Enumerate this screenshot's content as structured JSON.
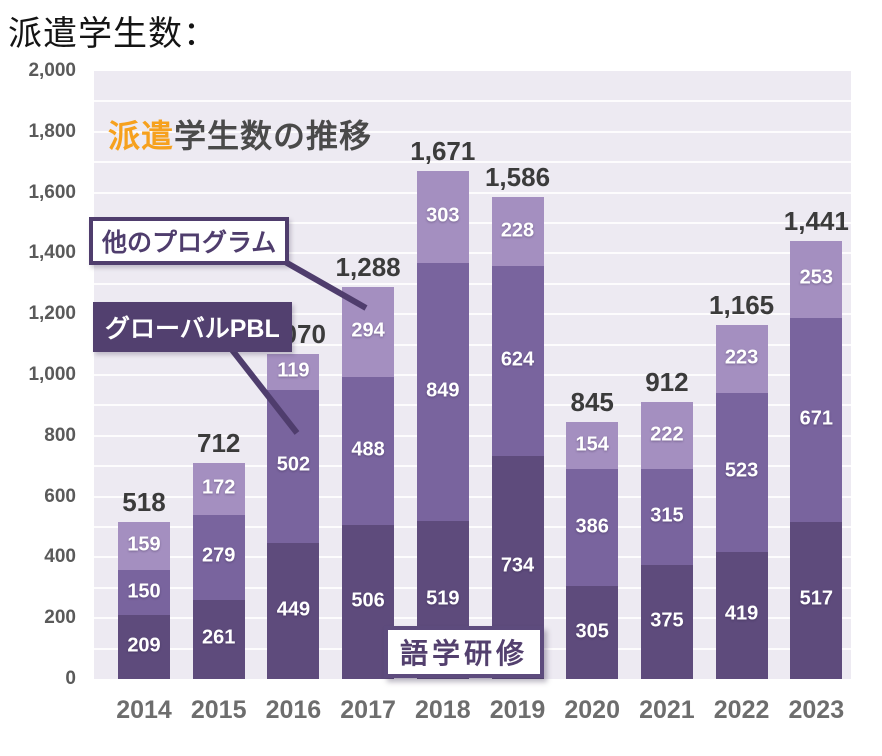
{
  "page": {
    "title": "派遣学生数："
  },
  "chart": {
    "title": {
      "highlight": "派遣",
      "rest": "学生数の推移"
    },
    "annotations": {
      "other_programs": "他のプログラム",
      "global_pbl": "グローバルPBL",
      "language_training": "語学研修"
    },
    "colors": {
      "plot_background": "#edeaf2",
      "gridline": "#ffffff",
      "annotation_purple": "#4f3d6d",
      "title_highlight_orange": "#f6a11e",
      "title_gray": "#4a4a4a",
      "total_label_gray": "#3b3b3b",
      "axis_gray": "#5a5a5a"
    }
  },
  "chart_data": {
    "type": "bar",
    "stacked": true,
    "title": "派遣学生数の推移",
    "categories": [
      "2014",
      "2015",
      "2016",
      "2017",
      "2018",
      "2019",
      "2020",
      "2021",
      "2022",
      "2023"
    ],
    "series": [
      {
        "name": "語学研修",
        "key": "language-training",
        "color": "#5e4b7c",
        "values": [
          209,
          261,
          449,
          506,
          519,
          734,
          305,
          375,
          419,
          517
        ]
      },
      {
        "name": "グローバルPBL",
        "key": "global-pbl",
        "color": "#79649e",
        "values": [
          150,
          279,
          502,
          488,
          849,
          624,
          386,
          315,
          523,
          671
        ]
      },
      {
        "name": "他のプログラム",
        "key": "other-programs",
        "color": "#a48fc0",
        "values": [
          159,
          172,
          119,
          294,
          303,
          228,
          154,
          222,
          223,
          253
        ]
      }
    ],
    "totals": [
      518,
      712,
      1070,
      1288,
      1671,
      1586,
      845,
      912,
      1165,
      1441
    ],
    "ylim": [
      0,
      2000
    ],
    "yticks": [
      0,
      200,
      400,
      600,
      800,
      1000,
      1200,
      1400,
      1600,
      1800,
      2000
    ],
    "minor_grid_step": 100,
    "legend_position": "none",
    "grid": "horizontal"
  }
}
